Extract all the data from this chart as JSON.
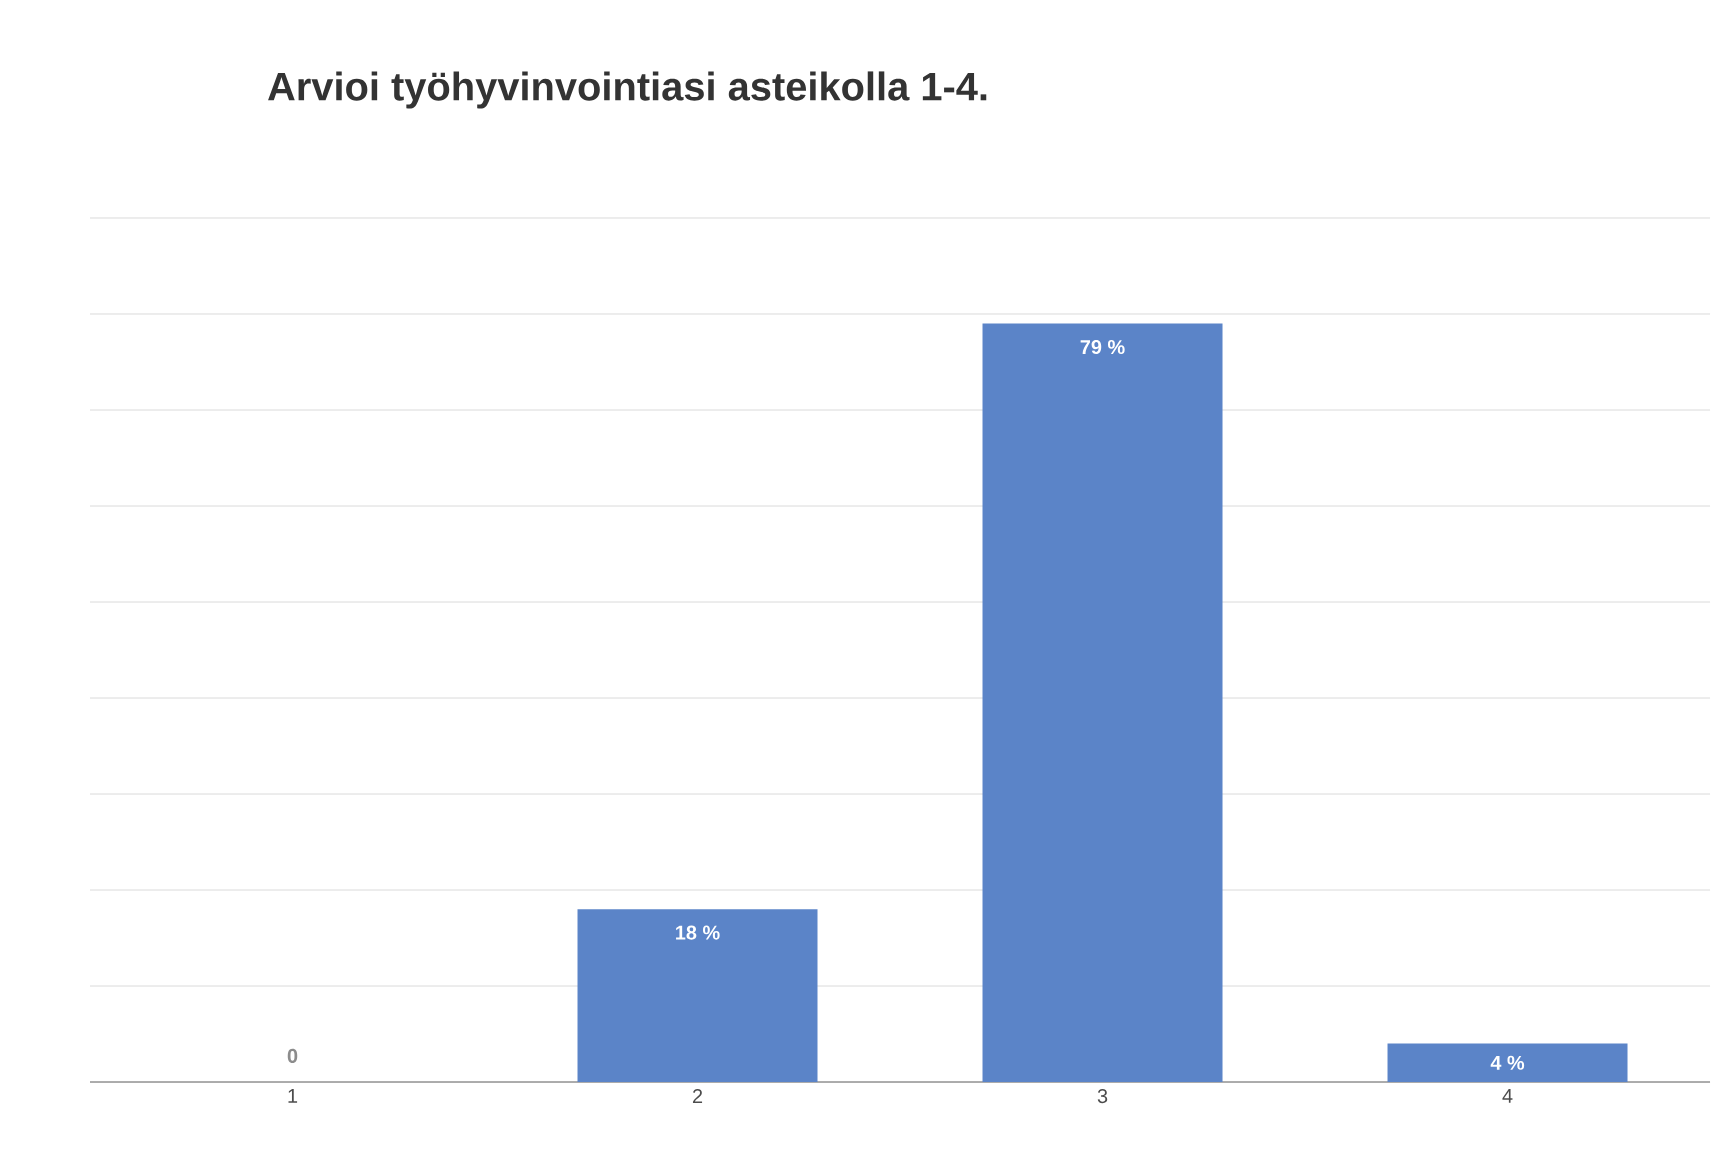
{
  "chart_data": {
    "type": "bar",
    "title": "Arvioi työhyvinvointiasi asteikolla 1-4.",
    "categories": [
      "1",
      "2",
      "3",
      "4"
    ],
    "values": [
      0,
      18,
      79,
      4
    ],
    "value_labels": [
      "0",
      "18 %",
      "79 %",
      "4 %"
    ],
    "color": "#5b84c8",
    "ylim": [
      0,
      90
    ],
    "yticks": [
      {
        "value": 0,
        "label": null
      },
      {
        "value": 10,
        "label": null
      },
      {
        "value": 20,
        "label": null
      },
      {
        "value": 30,
        "label": null
      },
      {
        "value": 40,
        "label": null
      },
      {
        "value": 50,
        "label": null
      },
      {
        "value": 60,
        "label": null
      },
      {
        "value": 70,
        "label": null
      },
      {
        "value": 80,
        "label": null
      },
      {
        "value": 90,
        "label": null
      }
    ],
    "tick_labels": "x",
    "grid": "y"
  }
}
